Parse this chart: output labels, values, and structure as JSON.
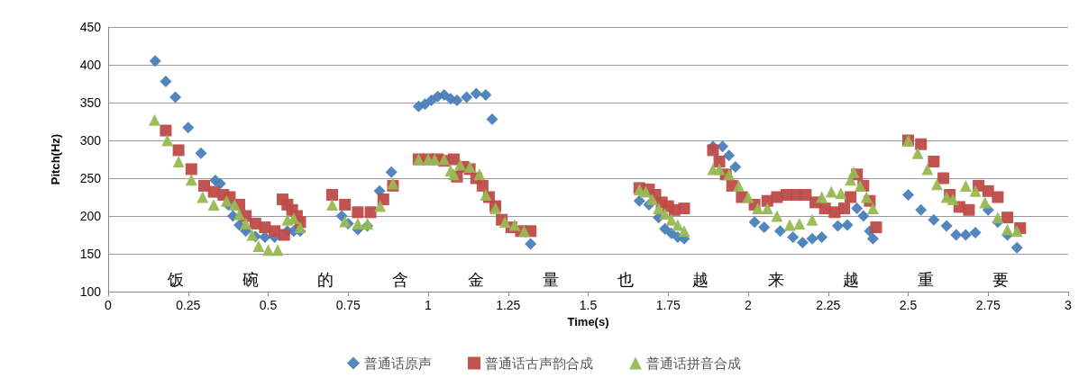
{
  "chart_data": {
    "type": "scatter",
    "xlabel": "Time(s)",
    "ylabel": "Pitch(Hz)",
    "xlim": [
      0,
      3
    ],
    "xticks": [
      0,
      0.25,
      0.5,
      0.75,
      1,
      1.25,
      1.5,
      1.75,
      2,
      2.25,
      2.5,
      2.75,
      3
    ],
    "ylim": [
      100,
      450
    ],
    "yticks": [
      100,
      150,
      200,
      250,
      300,
      350,
      400,
      450
    ],
    "grid": "y",
    "legend": "bottom",
    "series": [
      {
        "name": "普通话原声",
        "color": "#4a7ebb",
        "marker": "diamond",
        "x": [
          0.147,
          0.18,
          0.21,
          0.25,
          0.29,
          0.335,
          0.35,
          0.375,
          0.39,
          0.41,
          0.43,
          0.46,
          0.49,
          0.52,
          0.56,
          0.58,
          0.6,
          0.73,
          0.75,
          0.78,
          0.81,
          0.848,
          0.885,
          0.97,
          0.99,
          1.01,
          1.03,
          1.05,
          1.07,
          1.09,
          1.12,
          1.15,
          1.18,
          1.2,
          1.32,
          1.66,
          1.69,
          1.72,
          1.74,
          1.76,
          1.78,
          1.8,
          1.89,
          1.92,
          1.94,
          1.96,
          2.02,
          2.05,
          2.1,
          2.14,
          2.17,
          2.2,
          2.23,
          2.28,
          2.31,
          2.34,
          2.36,
          2.38,
          2.39,
          2.5,
          2.54,
          2.58,
          2.62,
          2.65,
          2.68,
          2.71,
          2.75,
          2.78,
          2.81,
          2.84
        ],
        "values": [
          405,
          378,
          357,
          317,
          283,
          247,
          243,
          215,
          200,
          188,
          180,
          173,
          172,
          172,
          180,
          180,
          180,
          200,
          190,
          182,
          187,
          233,
          258,
          345,
          348,
          353,
          358,
          360,
          355,
          353,
          357,
          362,
          360,
          328,
          163,
          220,
          215,
          198,
          183,
          177,
          172,
          170,
          292,
          292,
          280,
          265,
          192,
          185,
          180,
          172,
          165,
          170,
          172,
          187,
          188,
          210,
          200,
          180,
          170,
          228,
          208,
          195,
          187,
          175,
          175,
          178,
          208,
          192,
          175,
          158
        ]
      },
      {
        "name": "普通话古声韵合成",
        "color": "#be4b48",
        "marker": "square",
        "x": [
          0.18,
          0.22,
          0.26,
          0.3,
          0.33,
          0.36,
          0.38,
          0.41,
          0.43,
          0.46,
          0.49,
          0.52,
          0.55,
          0.545,
          0.56,
          0.575,
          0.59,
          0.6,
          0.7,
          0.74,
          0.78,
          0.82,
          0.86,
          0.89,
          0.97,
          1.0,
          1.03,
          1.05,
          1.08,
          1.09,
          1.11,
          1.13,
          1.15,
          1.17,
          1.19,
          1.21,
          1.23,
          1.26,
          1.29,
          1.32,
          1.66,
          1.69,
          1.71,
          1.73,
          1.75,
          1.77,
          1.8,
          1.89,
          1.91,
          1.93,
          1.95,
          1.98,
          2.02,
          2.06,
          2.09,
          2.12,
          2.15,
          2.18,
          2.21,
          2.24,
          2.27,
          2.3,
          2.32,
          2.34,
          2.36,
          2.38,
          2.4,
          2.5,
          2.54,
          2.58,
          2.61,
          2.63,
          2.66,
          2.69,
          2.72,
          2.75,
          2.78,
          2.81,
          2.85
        ],
        "values": [
          313,
          287,
          262,
          240,
          232,
          228,
          225,
          215,
          200,
          190,
          185,
          180,
          175,
          222,
          215,
          208,
          200,
          192,
          228,
          215,
          205,
          205,
          222,
          240,
          275,
          275,
          275,
          273,
          275,
          252,
          265,
          262,
          250,
          240,
          225,
          213,
          195,
          185,
          180,
          180,
          237,
          235,
          228,
          218,
          213,
          208,
          210,
          287,
          272,
          255,
          240,
          225,
          215,
          220,
          225,
          228,
          228,
          228,
          218,
          210,
          205,
          210,
          225,
          255,
          240,
          220,
          185,
          300,
          295,
          272,
          250,
          228,
          212,
          208,
          240,
          233,
          225,
          198,
          184
        ]
      },
      {
        "name": "普通话拼音合成",
        "color": "#98b954",
        "marker": "triangle",
        "x": [
          0.145,
          0.185,
          0.22,
          0.26,
          0.295,
          0.33,
          0.37,
          0.395,
          0.41,
          0.43,
          0.45,
          0.47,
          0.5,
          0.53,
          0.56,
          0.58,
          0.6,
          0.7,
          0.74,
          0.78,
          0.81,
          0.85,
          0.89,
          0.97,
          1.0,
          1.02,
          1.05,
          1.07,
          1.08,
          1.1,
          1.13,
          1.16,
          1.18,
          1.21,
          1.24,
          1.27,
          1.3,
          1.66,
          1.68,
          1.7,
          1.72,
          1.74,
          1.76,
          1.78,
          1.8,
          1.89,
          1.91,
          1.94,
          1.97,
          2.0,
          2.03,
          2.06,
          2.09,
          2.13,
          2.16,
          2.2,
          2.23,
          2.26,
          2.29,
          2.32,
          2.33,
          2.35,
          2.37,
          2.39,
          2.5,
          2.53,
          2.56,
          2.59,
          2.62,
          2.64,
          2.68,
          2.71,
          2.74,
          2.78,
          2.81,
          2.84
        ],
        "values": [
          327,
          300,
          272,
          248,
          225,
          215,
          220,
          215,
          202,
          190,
          175,
          160,
          155,
          155,
          195,
          197,
          185,
          215,
          193,
          190,
          190,
          213,
          243,
          275,
          275,
          275,
          275,
          260,
          255,
          268,
          265,
          255,
          228,
          210,
          192,
          188,
          180,
          235,
          232,
          222,
          210,
          203,
          195,
          188,
          180,
          262,
          262,
          255,
          240,
          225,
          210,
          210,
          200,
          188,
          190,
          195,
          225,
          232,
          230,
          248,
          258,
          240,
          225,
          210,
          300,
          283,
          262,
          242,
          225,
          222,
          240,
          233,
          218,
          198,
          182,
          180
        ]
      }
    ],
    "annotations": [
      "饭",
      "碗",
      "的",
      "含",
      "金",
      "量",
      "也",
      "越",
      "来",
      "越",
      "重",
      "要"
    ]
  }
}
